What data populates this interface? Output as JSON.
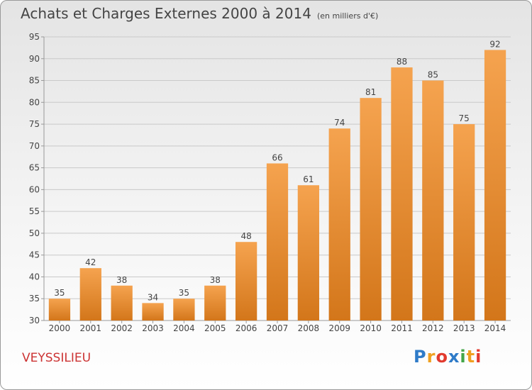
{
  "header": {
    "title": "Achats et Charges Externes 2000 à 2014",
    "subtitle": "(en milliers d'€)"
  },
  "footer": {
    "commune": "VEYSSILIEU",
    "logo_parts": [
      "P",
      "r",
      "o",
      "x",
      "i",
      "t",
      "i"
    ]
  },
  "colors": {
    "bar": "#f5a34f",
    "bar_dark": "#d3761a",
    "grid": "#c9c9c9",
    "commune": "#cc3333"
  },
  "chart_data": {
    "type": "bar",
    "title": "Achats et Charges Externes 2000 à 2014",
    "subtitle": "(en milliers d'€)",
    "categories": [
      "2000",
      "2001",
      "2002",
      "2003",
      "2004",
      "2005",
      "2006",
      "2007",
      "2008",
      "2009",
      "2010",
      "2011",
      "2012",
      "2013",
      "2014"
    ],
    "values": [
      35,
      42,
      38,
      34,
      35,
      38,
      48,
      66,
      61,
      74,
      81,
      88,
      85,
      75,
      92
    ],
    "ylim": [
      30,
      95
    ],
    "yticks": [
      30,
      35,
      40,
      45,
      50,
      55,
      60,
      65,
      70,
      75,
      80,
      85,
      90,
      95
    ],
    "grid": true,
    "xlabel": "",
    "ylabel": ""
  }
}
